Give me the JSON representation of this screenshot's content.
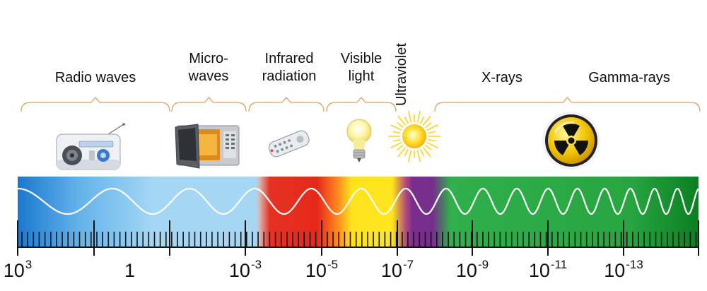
{
  "bands": [
    {
      "id": "radio",
      "lines": [
        "Radio waves"
      ]
    },
    {
      "id": "micro",
      "lines": [
        "Micro-",
        "waves"
      ]
    },
    {
      "id": "infrared",
      "lines": [
        "Infrared",
        "radiation"
      ]
    },
    {
      "id": "visible",
      "lines": [
        "Visible",
        "light"
      ]
    },
    {
      "id": "uv",
      "lines": [
        "Ultraviolet"
      ]
    },
    {
      "id": "xray",
      "lines": [
        "X-rays"
      ]
    },
    {
      "id": "gamma",
      "lines": [
        "Gamma-rays"
      ]
    }
  ],
  "ticks": [
    {
      "base": "10",
      "exp": "3"
    },
    {
      "base": "1",
      "exp": ""
    },
    {
      "base": "10",
      "exp": "-3"
    },
    {
      "base": "10",
      "exp": "-5"
    },
    {
      "base": "10",
      "exp": "-7"
    },
    {
      "base": "10",
      "exp": "-9"
    },
    {
      "base": "10",
      "exp": "-11"
    },
    {
      "base": "10",
      "exp": "-13"
    }
  ],
  "icons": [
    "radio-icon",
    "microwave-oven-icon",
    "remote-control-icon",
    "light-bulb-icon",
    "sun-icon",
    "radiation-symbol-icon"
  ],
  "colors": {
    "radio": "#1a7fd0",
    "micro": "#9fd1f2",
    "infrared": "#e02a1c",
    "visible": "#ffe81a",
    "uv": "#7a2a90",
    "xray": "#2fb34a",
    "gamma": "#0f8a2a",
    "brace": "#d9a55a"
  }
}
